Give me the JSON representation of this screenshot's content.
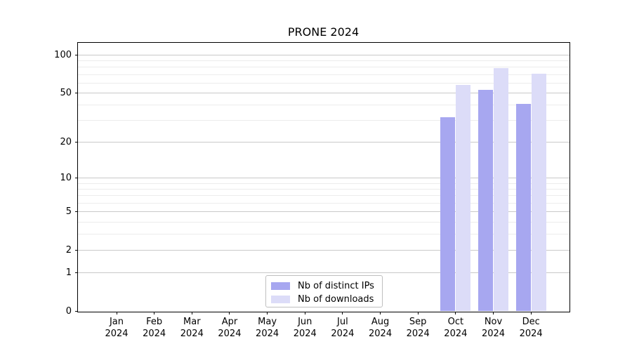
{
  "title": "PRONE 2024",
  "colors": {
    "ips_bar": "#a7a7f0",
    "downloads_bar": "#dcdcf8",
    "grid_major": "#c9c9c9",
    "grid_minor": "#ececec",
    "spine": "#000000",
    "text": "#000000",
    "legend_border": "#bfbfbf"
  },
  "chart_data": {
    "type": "bar",
    "title": "PRONE 2024",
    "categories": [
      "Jan",
      "Feb",
      "Mar",
      "Apr",
      "May",
      "Jun",
      "Jul",
      "Aug",
      "Sep",
      "Oct",
      "Nov",
      "Dec"
    ],
    "year": "2024",
    "series": [
      {
        "name": "Nb of distinct IPs",
        "color_key": "ips_bar",
        "values": [
          null,
          null,
          null,
          null,
          null,
          null,
          null,
          null,
          null,
          32,
          53,
          41
        ]
      },
      {
        "name": "Nb of downloads",
        "color_key": "downloads_bar",
        "values": [
          null,
          null,
          null,
          null,
          null,
          null,
          null,
          null,
          null,
          58,
          79,
          71
        ]
      }
    ],
    "xlabel": "",
    "ylabel": "",
    "y_scale": "log10(1+y), 0 at baseline",
    "y_ticks": [
      100,
      50,
      20,
      10,
      5,
      2,
      1,
      0
    ],
    "y_minor_ticks": [
      3,
      4,
      6,
      7,
      8,
      9,
      30,
      40,
      60,
      70,
      80,
      90
    ],
    "ylim": [
      0,
      126
    ],
    "grid": "on",
    "legend_position": "bottom-center-inside"
  }
}
